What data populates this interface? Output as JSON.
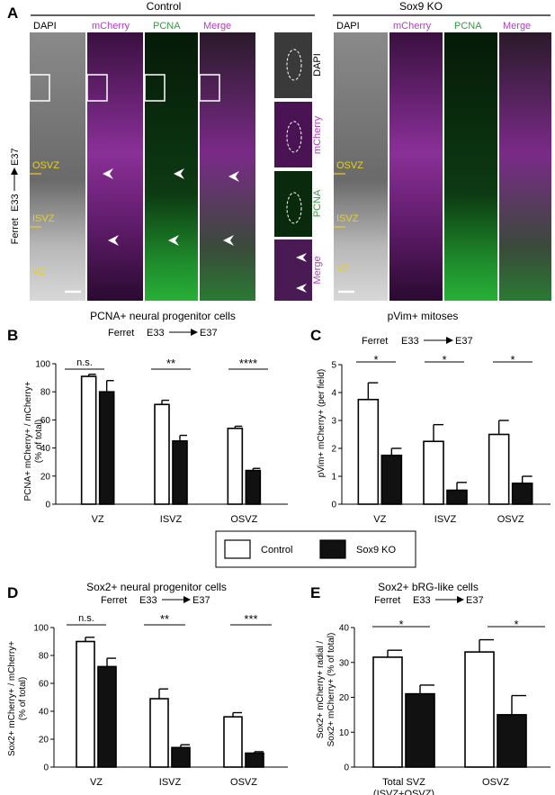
{
  "panel_a": {
    "letter": "A",
    "control_title": "Control",
    "ko_title": "Sox9 KO",
    "channels": [
      "DAPI",
      "mCherry",
      "PCNA",
      "Merge"
    ],
    "inset_labels": [
      "DAPI",
      "mCherry",
      "PCNA",
      "Merge"
    ],
    "side_label_prefix": "Ferret",
    "side_label_from": "E33",
    "side_label_to": "E37",
    "zones": [
      "OSVZ",
      "ISVZ",
      "VZ"
    ],
    "colors": {
      "dapi": "#c8c8c8",
      "mcherry": "#b040c0",
      "pcna": "#30c040",
      "zone": "#e8d020"
    }
  },
  "legend": {
    "control": "Control",
    "ko": "Sox9 KO"
  },
  "charts": [
    {
      "letter": "B",
      "title": "PCNA+ neural progenitor cells",
      "sub_prefix": "Ferret",
      "sub_from": "E33",
      "sub_to": "E37",
      "ylabel_lines": [
        "PCNA+ mCherry+ / mCherry+",
        "(% of total)"
      ],
      "sig": [
        "n.s.",
        "**",
        "****"
      ]
    },
    {
      "letter": "C",
      "title": "pVim+ mitoses",
      "sub_prefix": "Ferret",
      "sub_from": "E33",
      "sub_to": "E37",
      "ylabel_lines": [
        "pVim+ mCherry+ (per field)"
      ],
      "sig": [
        "*",
        "*",
        "*"
      ]
    },
    {
      "letter": "D",
      "title": "Sox2+ neural progenitor cells",
      "sub_prefix": "Ferret",
      "sub_from": "E33",
      "sub_to": "E37",
      "ylabel_lines": [
        "Sox2+ mCherry+ / mCherry+",
        "(% of total)"
      ],
      "sig": [
        "n.s.",
        "**",
        "***"
      ]
    },
    {
      "letter": "E",
      "title": "Sox2+ bRG-like cells",
      "sub_prefix": "Ferret",
      "sub_from": "E33",
      "sub_to": "E37",
      "ylabel_lines": [
        "Sox2+ mCherry+ radial /",
        "Sox2+ mCherry+ (% of total)"
      ],
      "sig": [
        "*",
        "*"
      ],
      "cat_lines": [
        [
          "Total SVZ",
          "(ISVZ+OSVZ)"
        ],
        [
          "OSVZ"
        ]
      ]
    }
  ],
  "chart_data": [
    {
      "type": "bar",
      "categories": [
        "VZ",
        "ISVZ",
        "OSVZ"
      ],
      "series": [
        {
          "name": "Control",
          "values": [
            91,
            71,
            54
          ],
          "error": [
            1.5,
            3,
            1.5
          ]
        },
        {
          "name": "Sox9 KO",
          "values": [
            80,
            45,
            24
          ],
          "error": [
            8,
            4,
            1.5
          ]
        }
      ],
      "ylim": [
        0,
        100
      ],
      "yticks": [
        0,
        20,
        40,
        60,
        80,
        100
      ]
    },
    {
      "type": "bar",
      "categories": [
        "VZ",
        "ISVZ",
        "OSVZ"
      ],
      "series": [
        {
          "name": "Control",
          "values": [
            3.75,
            2.25,
            2.5
          ],
          "error": [
            0.6,
            0.6,
            0.5
          ]
        },
        {
          "name": "Sox9 KO",
          "values": [
            1.75,
            0.5,
            0.75
          ],
          "error": [
            0.25,
            0.28,
            0.25
          ]
        }
      ],
      "ylim": [
        0,
        5
      ],
      "yticks": [
        0,
        1,
        2,
        3,
        4,
        5
      ]
    },
    {
      "type": "bar",
      "categories": [
        "VZ",
        "ISVZ",
        "OSVZ"
      ],
      "series": [
        {
          "name": "Control",
          "values": [
            90,
            49,
            36
          ],
          "error": [
            3,
            7,
            3
          ]
        },
        {
          "name": "Sox9 KO",
          "values": [
            72,
            14,
            10
          ],
          "error": [
            6,
            2,
            1
          ]
        }
      ],
      "ylim": [
        0,
        100
      ],
      "yticks": [
        0,
        20,
        40,
        60,
        80,
        100
      ]
    },
    {
      "type": "bar",
      "categories": [
        "Total SVZ (ISVZ+OSVZ)",
        "OSVZ"
      ],
      "series": [
        {
          "name": "Control",
          "values": [
            31.5,
            33
          ],
          "error": [
            2,
            3.5
          ]
        },
        {
          "name": "Sox9 KO",
          "values": [
            21,
            15
          ],
          "error": [
            2.5,
            5.5
          ]
        }
      ],
      "ylim": [
        0,
        40
      ],
      "yticks": [
        0,
        10,
        20,
        30,
        40
      ]
    }
  ]
}
